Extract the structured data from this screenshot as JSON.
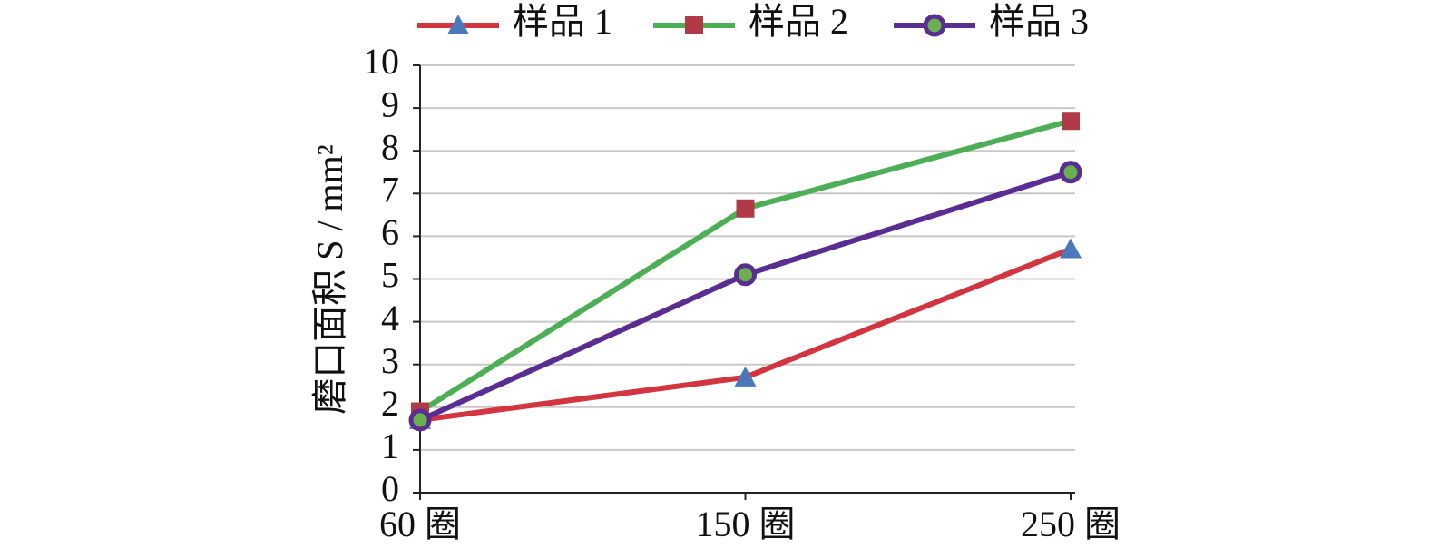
{
  "chart_data": {
    "type": "line",
    "categories": [
      "60 圈",
      "150 圈",
      "250 圈"
    ],
    "y_label": "磨口面积 S / mm²",
    "series": [
      {
        "name": "样品 1",
        "color": "#d23540",
        "marker": "triangle",
        "marker_color": "#4a78b8",
        "values": [
          1.7,
          2.7,
          5.7
        ]
      },
      {
        "name": "样品 2",
        "color": "#4caf55",
        "marker": "square",
        "marker_color": "#b03a48",
        "values": [
          1.9,
          6.65,
          8.7
        ]
      },
      {
        "name": "样品 3",
        "color": "#5a2d92",
        "marker": "circle",
        "marker_color": "#6ab04c",
        "values": [
          1.7,
          5.1,
          7.5
        ]
      }
    ],
    "ylim": [
      0,
      10
    ],
    "yticks": [
      0,
      1,
      2,
      3,
      4,
      5,
      6,
      7,
      8,
      9,
      10
    ],
    "grid": true,
    "legend": "top"
  }
}
